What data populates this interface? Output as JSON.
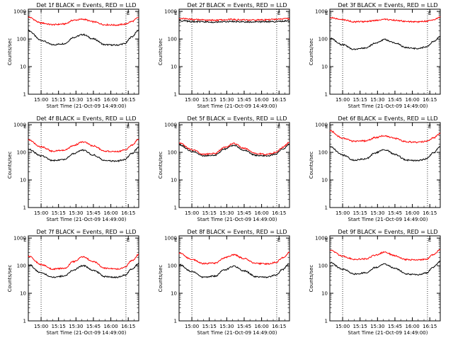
{
  "colors": {
    "events": "#000000",
    "lld": "#ff0000",
    "axes": "#000000",
    "background": "#ffffff"
  },
  "chart_data": [
    {
      "type": "line",
      "title": "Det 1f BLACK = Events, RED = LLD",
      "xlabel": "Start Time (21-Oct-09 14:49:00)",
      "ylabel": "Counts/sec",
      "x_ticks": [
        "15:00",
        "15:15",
        "15:30",
        "15:45",
        "16:00",
        "16:15"
      ],
      "y_ticks": [
        "1",
        "10",
        "100",
        "1000"
      ],
      "y_scale": "log",
      "ylim": [
        1,
        1200
      ],
      "xlim": [
        "14:49",
        "16:24"
      ],
      "markers": [
        "15:00",
        "16:13"
      ],
      "corner_labels": [
        "E",
        "E"
      ],
      "series": [
        {
          "role": "events",
          "x": [
            "14:49",
            "15:00",
            "15:10",
            "15:20",
            "15:28",
            "15:36",
            "15:45",
            "15:55",
            "16:05",
            "16:12",
            "16:18",
            "16:24"
          ],
          "values": [
            200,
            90,
            62,
            68,
            115,
            145,
            100,
            62,
            60,
            68,
            120,
            210
          ]
        },
        {
          "role": "lld",
          "x": [
            "14:49",
            "15:00",
            "15:10",
            "15:20",
            "15:28",
            "15:36",
            "15:45",
            "15:55",
            "16:05",
            "16:12",
            "16:18",
            "16:24"
          ],
          "values": [
            620,
            380,
            330,
            350,
            480,
            520,
            420,
            330,
            320,
            345,
            430,
            600
          ]
        }
      ]
    },
    {
      "type": "line",
      "title": "Det 2f BLACK = Events, RED = LLD",
      "xlabel": "Start Time (21-Oct-09 14:49:00)",
      "ylabel": "Counts/sec",
      "x_ticks": [
        "15:00",
        "15:15",
        "15:30",
        "15:45",
        "16:00",
        "16:15"
      ],
      "y_ticks": [
        "1",
        "10",
        "100",
        "1000"
      ],
      "y_scale": "log",
      "ylim": [
        1,
        1200
      ],
      "xlim": [
        "14:49",
        "16:24"
      ],
      "markers": [
        "15:00",
        "16:13"
      ],
      "corner_labels": [
        "E",
        "E"
      ],
      "series": [
        {
          "role": "events",
          "x": [
            "14:49",
            "15:05",
            "15:20",
            "15:35",
            "15:50",
            "16:05",
            "16:24"
          ],
          "values": [
            460,
            420,
            410,
            430,
            415,
            420,
            450
          ]
        },
        {
          "role": "lld",
          "x": [
            "14:49",
            "15:05",
            "15:20",
            "15:35",
            "15:50",
            "16:05",
            "16:24"
          ],
          "values": [
            560,
            500,
            480,
            510,
            490,
            500,
            540
          ]
        }
      ]
    },
    {
      "type": "line",
      "title": "Det 3f BLACK = Events, RED = LLD",
      "xlabel": "Start Time (21-Oct-09 14:49:00)",
      "ylabel": "Counts/sec",
      "x_ticks": [
        "15:00",
        "15:15",
        "15:30",
        "15:45",
        "16:00",
        "16:15"
      ],
      "y_ticks": [
        "1",
        "10",
        "100",
        "1000"
      ],
      "y_scale": "log",
      "ylim": [
        1,
        1200
      ],
      "xlim": [
        "14:49",
        "16:24"
      ],
      "markers": [
        "15:00",
        "16:13"
      ],
      "corner_labels": [
        "E",
        "E"
      ],
      "series": [
        {
          "role": "events",
          "x": [
            "14:49",
            "15:00",
            "15:10",
            "15:20",
            "15:28",
            "15:36",
            "15:45",
            "15:55",
            "16:05",
            "16:12",
            "16:18",
            "16:24"
          ],
          "values": [
            105,
            62,
            42,
            48,
            70,
            95,
            72,
            48,
            45,
            52,
            80,
            120
          ]
        },
        {
          "role": "lld",
          "x": [
            "14:49",
            "15:00",
            "15:10",
            "15:20",
            "15:28",
            "15:36",
            "15:45",
            "15:55",
            "16:05",
            "16:12",
            "16:18",
            "16:24"
          ],
          "values": [
            600,
            500,
            420,
            430,
            470,
            520,
            480,
            430,
            420,
            440,
            500,
            620
          ]
        }
      ]
    },
    {
      "type": "line",
      "title": "Det 4f BLACK = Events, RED = LLD",
      "xlabel": "Start Time (21-Oct-09 14:49:00)",
      "ylabel": "Counts/sec",
      "x_ticks": [
        "15:00",
        "15:15",
        "15:30",
        "15:45",
        "16:00",
        "16:15"
      ],
      "y_ticks": [
        "1",
        "10",
        "100",
        "1000"
      ],
      "y_scale": "log",
      "ylim": [
        1,
        1200
      ],
      "xlim": [
        "14:49",
        "16:24"
      ],
      "markers": [
        "15:00",
        "16:13"
      ],
      "corner_labels": [
        "E",
        "E"
      ],
      "series": [
        {
          "role": "events",
          "x": [
            "14:49",
            "15:00",
            "15:10",
            "15:20",
            "15:28",
            "15:36",
            "15:45",
            "15:55",
            "16:05",
            "16:12",
            "16:18",
            "16:24"
          ],
          "values": [
            130,
            75,
            50,
            55,
            90,
            120,
            80,
            50,
            48,
            55,
            90,
            150
          ]
        },
        {
          "role": "lld",
          "x": [
            "14:49",
            "15:00",
            "15:10",
            "15:20",
            "15:28",
            "15:36",
            "15:45",
            "15:55",
            "16:05",
            "16:12",
            "16:18",
            "16:24"
          ],
          "values": [
            280,
            160,
            110,
            120,
            180,
            240,
            170,
            110,
            105,
            120,
            180,
            300
          ]
        }
      ]
    },
    {
      "type": "line",
      "title": "Det 5f BLACK = Events, RED = LLD",
      "xlabel": "Start Time (21-Oct-09 14:49:00)",
      "ylabel": "Counts/sec",
      "x_ticks": [
        "15:00",
        "15:15",
        "15:30",
        "15:45",
        "16:00",
        "16:15"
      ],
      "y_ticks": [
        "1",
        "10",
        "100",
        "1000"
      ],
      "y_scale": "log",
      "ylim": [
        1,
        1200
      ],
      "xlim": [
        "14:49",
        "16:24"
      ],
      "markers": [
        "15:00",
        "16:13"
      ],
      "corner_labels": [
        "E",
        "E"
      ],
      "series": [
        {
          "role": "events",
          "x": [
            "14:49",
            "15:00",
            "15:10",
            "15:20",
            "15:28",
            "15:36",
            "15:45",
            "15:55",
            "16:05",
            "16:12",
            "16:18",
            "16:24"
          ],
          "values": [
            190,
            110,
            75,
            80,
            130,
            180,
            120,
            78,
            75,
            85,
            130,
            200
          ]
        },
        {
          "role": "lld",
          "x": [
            "14:49",
            "15:00",
            "15:10",
            "15:20",
            "15:28",
            "15:36",
            "15:45",
            "15:55",
            "16:05",
            "16:12",
            "16:18",
            "16:24"
          ],
          "values": [
            220,
            125,
            85,
            92,
            150,
            210,
            140,
            90,
            85,
            98,
            150,
            230
          ]
        }
      ]
    },
    {
      "type": "line",
      "title": "Det 6f BLACK = Events, RED = LLD",
      "xlabel": "Start Time (21-Oct-09 14:49:00)",
      "ylabel": "Counts/sec",
      "x_ticks": [
        "15:00",
        "15:15",
        "15:30",
        "15:45",
        "16:00",
        "16:15"
      ],
      "y_ticks": [
        "1",
        "10",
        "100",
        "1000"
      ],
      "y_scale": "log",
      "ylim": [
        1,
        1200
      ],
      "xlim": [
        "14:49",
        "16:24"
      ],
      "markers": [
        "15:00",
        "16:13"
      ],
      "corner_labels": [
        "E",
        "E"
      ],
      "series": [
        {
          "role": "events",
          "x": [
            "14:49",
            "15:00",
            "15:10",
            "15:20",
            "15:28",
            "15:36",
            "15:45",
            "15:55",
            "16:05",
            "16:12",
            "16:18",
            "16:24"
          ],
          "values": [
            160,
            80,
            52,
            58,
            95,
            125,
            85,
            52,
            50,
            58,
            95,
            160
          ]
        },
        {
          "role": "lld",
          "x": [
            "14:49",
            "15:00",
            "15:10",
            "15:20",
            "15:28",
            "15:36",
            "15:45",
            "15:55",
            "16:05",
            "16:12",
            "16:18",
            "16:24"
          ],
          "values": [
            600,
            330,
            250,
            260,
            340,
            400,
            320,
            240,
            230,
            250,
            330,
            480
          ]
        }
      ]
    },
    {
      "type": "line",
      "title": "Det 7f BLACK = Events, RED = LLD",
      "xlabel": "Start Time (21-Oct-09 14:49:00)",
      "ylabel": "Counts/sec",
      "x_ticks": [
        "15:00",
        "15:15",
        "15:30",
        "15:45",
        "16:00",
        "16:15"
      ],
      "y_ticks": [
        "1",
        "10",
        "100",
        "1000"
      ],
      "y_scale": "log",
      "ylim": [
        1,
        1200
      ],
      "xlim": [
        "14:49",
        "16:24"
      ],
      "markers": [
        "15:00",
        "16:13"
      ],
      "corner_labels": [
        "E",
        "E"
      ],
      "series": [
        {
          "role": "events",
          "x": [
            "14:49",
            "15:00",
            "15:10",
            "15:20",
            "15:28",
            "15:36",
            "15:45",
            "15:55",
            "16:05",
            "16:12",
            "16:18",
            "16:24"
          ],
          "values": [
            110,
            55,
            38,
            42,
            70,
            100,
            68,
            40,
            38,
            45,
            75,
            120
          ]
        },
        {
          "role": "lld",
          "x": [
            "14:49",
            "15:00",
            "15:10",
            "15:20",
            "15:28",
            "15:36",
            "15:45",
            "15:55",
            "16:05",
            "16:12",
            "16:18",
            "16:24"
          ],
          "values": [
            220,
            110,
            75,
            80,
            140,
            210,
            140,
            80,
            75,
            88,
            150,
            250
          ]
        }
      ]
    },
    {
      "type": "line",
      "title": "Det 8f BLACK = Events, RED = LLD",
      "xlabel": "Start Time (21-Oct-09 14:49:00)",
      "ylabel": "Counts/sec",
      "x_ticks": [
        "15:00",
        "15:15",
        "15:30",
        "15:45",
        "16:00",
        "16:15"
      ],
      "y_ticks": [
        "1",
        "10",
        "100",
        "1000"
      ],
      "y_scale": "log",
      "ylim": [
        1,
        1200
      ],
      "xlim": [
        "14:49",
        "16:24"
      ],
      "markers": [
        "15:00",
        "16:13"
      ],
      "corner_labels": [
        "E",
        "E"
      ],
      "series": [
        {
          "role": "events",
          "x": [
            "14:49",
            "15:00",
            "15:10",
            "15:20",
            "15:28",
            "15:36",
            "15:45",
            "15:55",
            "16:05",
            "16:12",
            "16:18",
            "16:24"
          ],
          "values": [
            110,
            60,
            38,
            42,
            70,
            95,
            65,
            40,
            38,
            45,
            72,
            120
          ]
        },
        {
          "role": "lld",
          "x": [
            "14:49",
            "15:00",
            "15:10",
            "15:20",
            "15:28",
            "15:36",
            "15:45",
            "15:55",
            "16:05",
            "16:12",
            "16:18",
            "16:24"
          ],
          "values": [
            280,
            170,
            120,
            125,
            190,
            250,
            180,
            120,
            115,
            130,
            190,
            300
          ]
        }
      ]
    },
    {
      "type": "line",
      "title": "Det 9f BLACK = Events, RED = LLD",
      "xlabel": "Start Time (21-Oct-09 14:49:00)",
      "ylabel": "Counts/sec",
      "x_ticks": [
        "15:00",
        "15:15",
        "15:30",
        "15:45",
        "16:00",
        "16:15"
      ],
      "y_ticks": [
        "1",
        "10",
        "100",
        "1000"
      ],
      "y_scale": "log",
      "ylim": [
        1,
        1200
      ],
      "xlim": [
        "14:49",
        "16:24"
      ],
      "markers": [
        "15:00",
        "16:13"
      ],
      "corner_labels": [
        "E",
        "E"
      ],
      "series": [
        {
          "role": "events",
          "x": [
            "14:49",
            "15:00",
            "15:10",
            "15:20",
            "15:28",
            "15:36",
            "15:45",
            "15:55",
            "16:05",
            "16:12",
            "16:18",
            "16:24"
          ],
          "values": [
            130,
            75,
            50,
            55,
            85,
            115,
            80,
            50,
            48,
            55,
            88,
            140
          ]
        },
        {
          "role": "lld",
          "x": [
            "14:49",
            "15:00",
            "15:10",
            "15:20",
            "15:28",
            "15:36",
            "15:45",
            "15:55",
            "16:05",
            "16:12",
            "16:18",
            "16:24"
          ],
          "values": [
            360,
            220,
            170,
            175,
            240,
            310,
            230,
            165,
            160,
            175,
            250,
            380
          ]
        }
      ]
    }
  ]
}
